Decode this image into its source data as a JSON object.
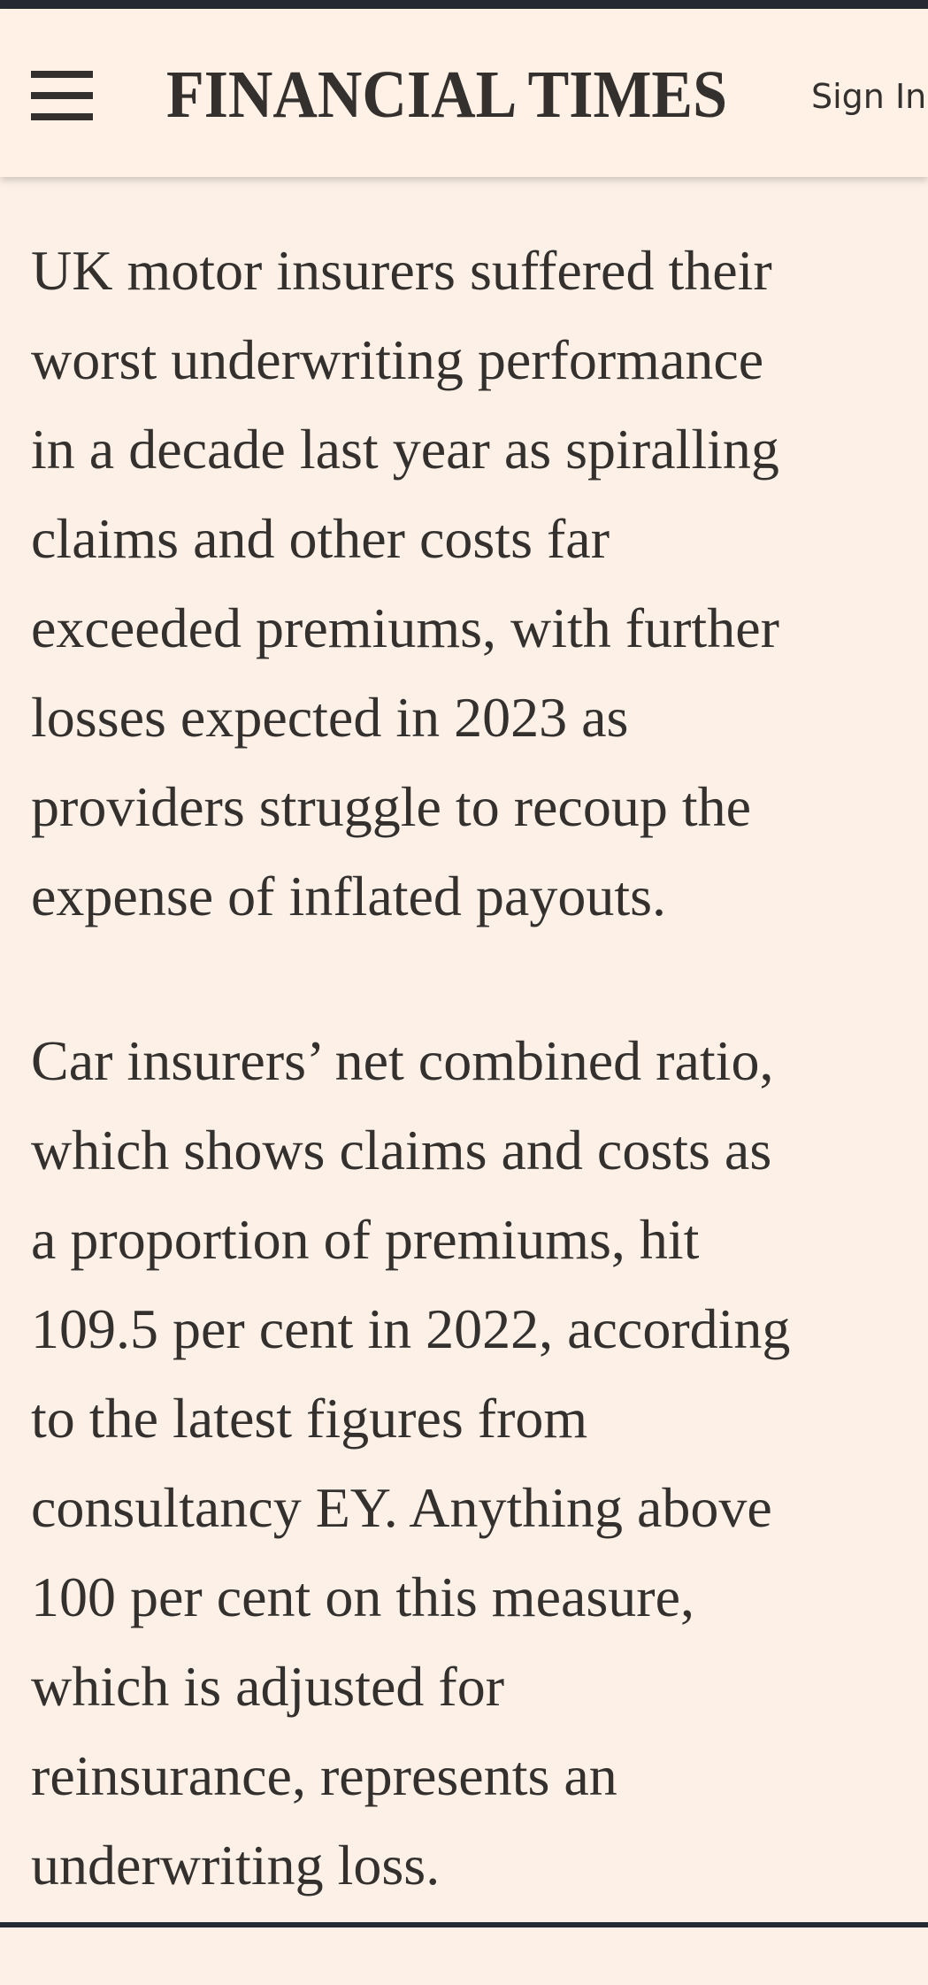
{
  "header": {
    "title": "FINANCIAL TIMES",
    "sign_in": "Sign In"
  },
  "article": {
    "paragraphs": [
      {
        "lines": [
          "UK motor insurers suffered their",
          "worst underwriting performance",
          "in a decade last year as spiralling",
          "claims and other costs far",
          "exceeded premiums, with further",
          "losses expected in 2023 as",
          "providers struggle to recoup the",
          "expense of inflated payouts."
        ]
      },
      {
        "lines": [
          "Car insurers’ net combined ratio,",
          "which shows claims and costs as",
          "a proportion of premiums, hit",
          "109.5 per cent in 2022, according",
          "to the latest figures from",
          "consultancy EY. Anything above",
          "100 per cent on this measure,",
          "which is adjusted for",
          "reinsurance, represents an",
          "underwriting loss."
        ]
      }
    ]
  }
}
